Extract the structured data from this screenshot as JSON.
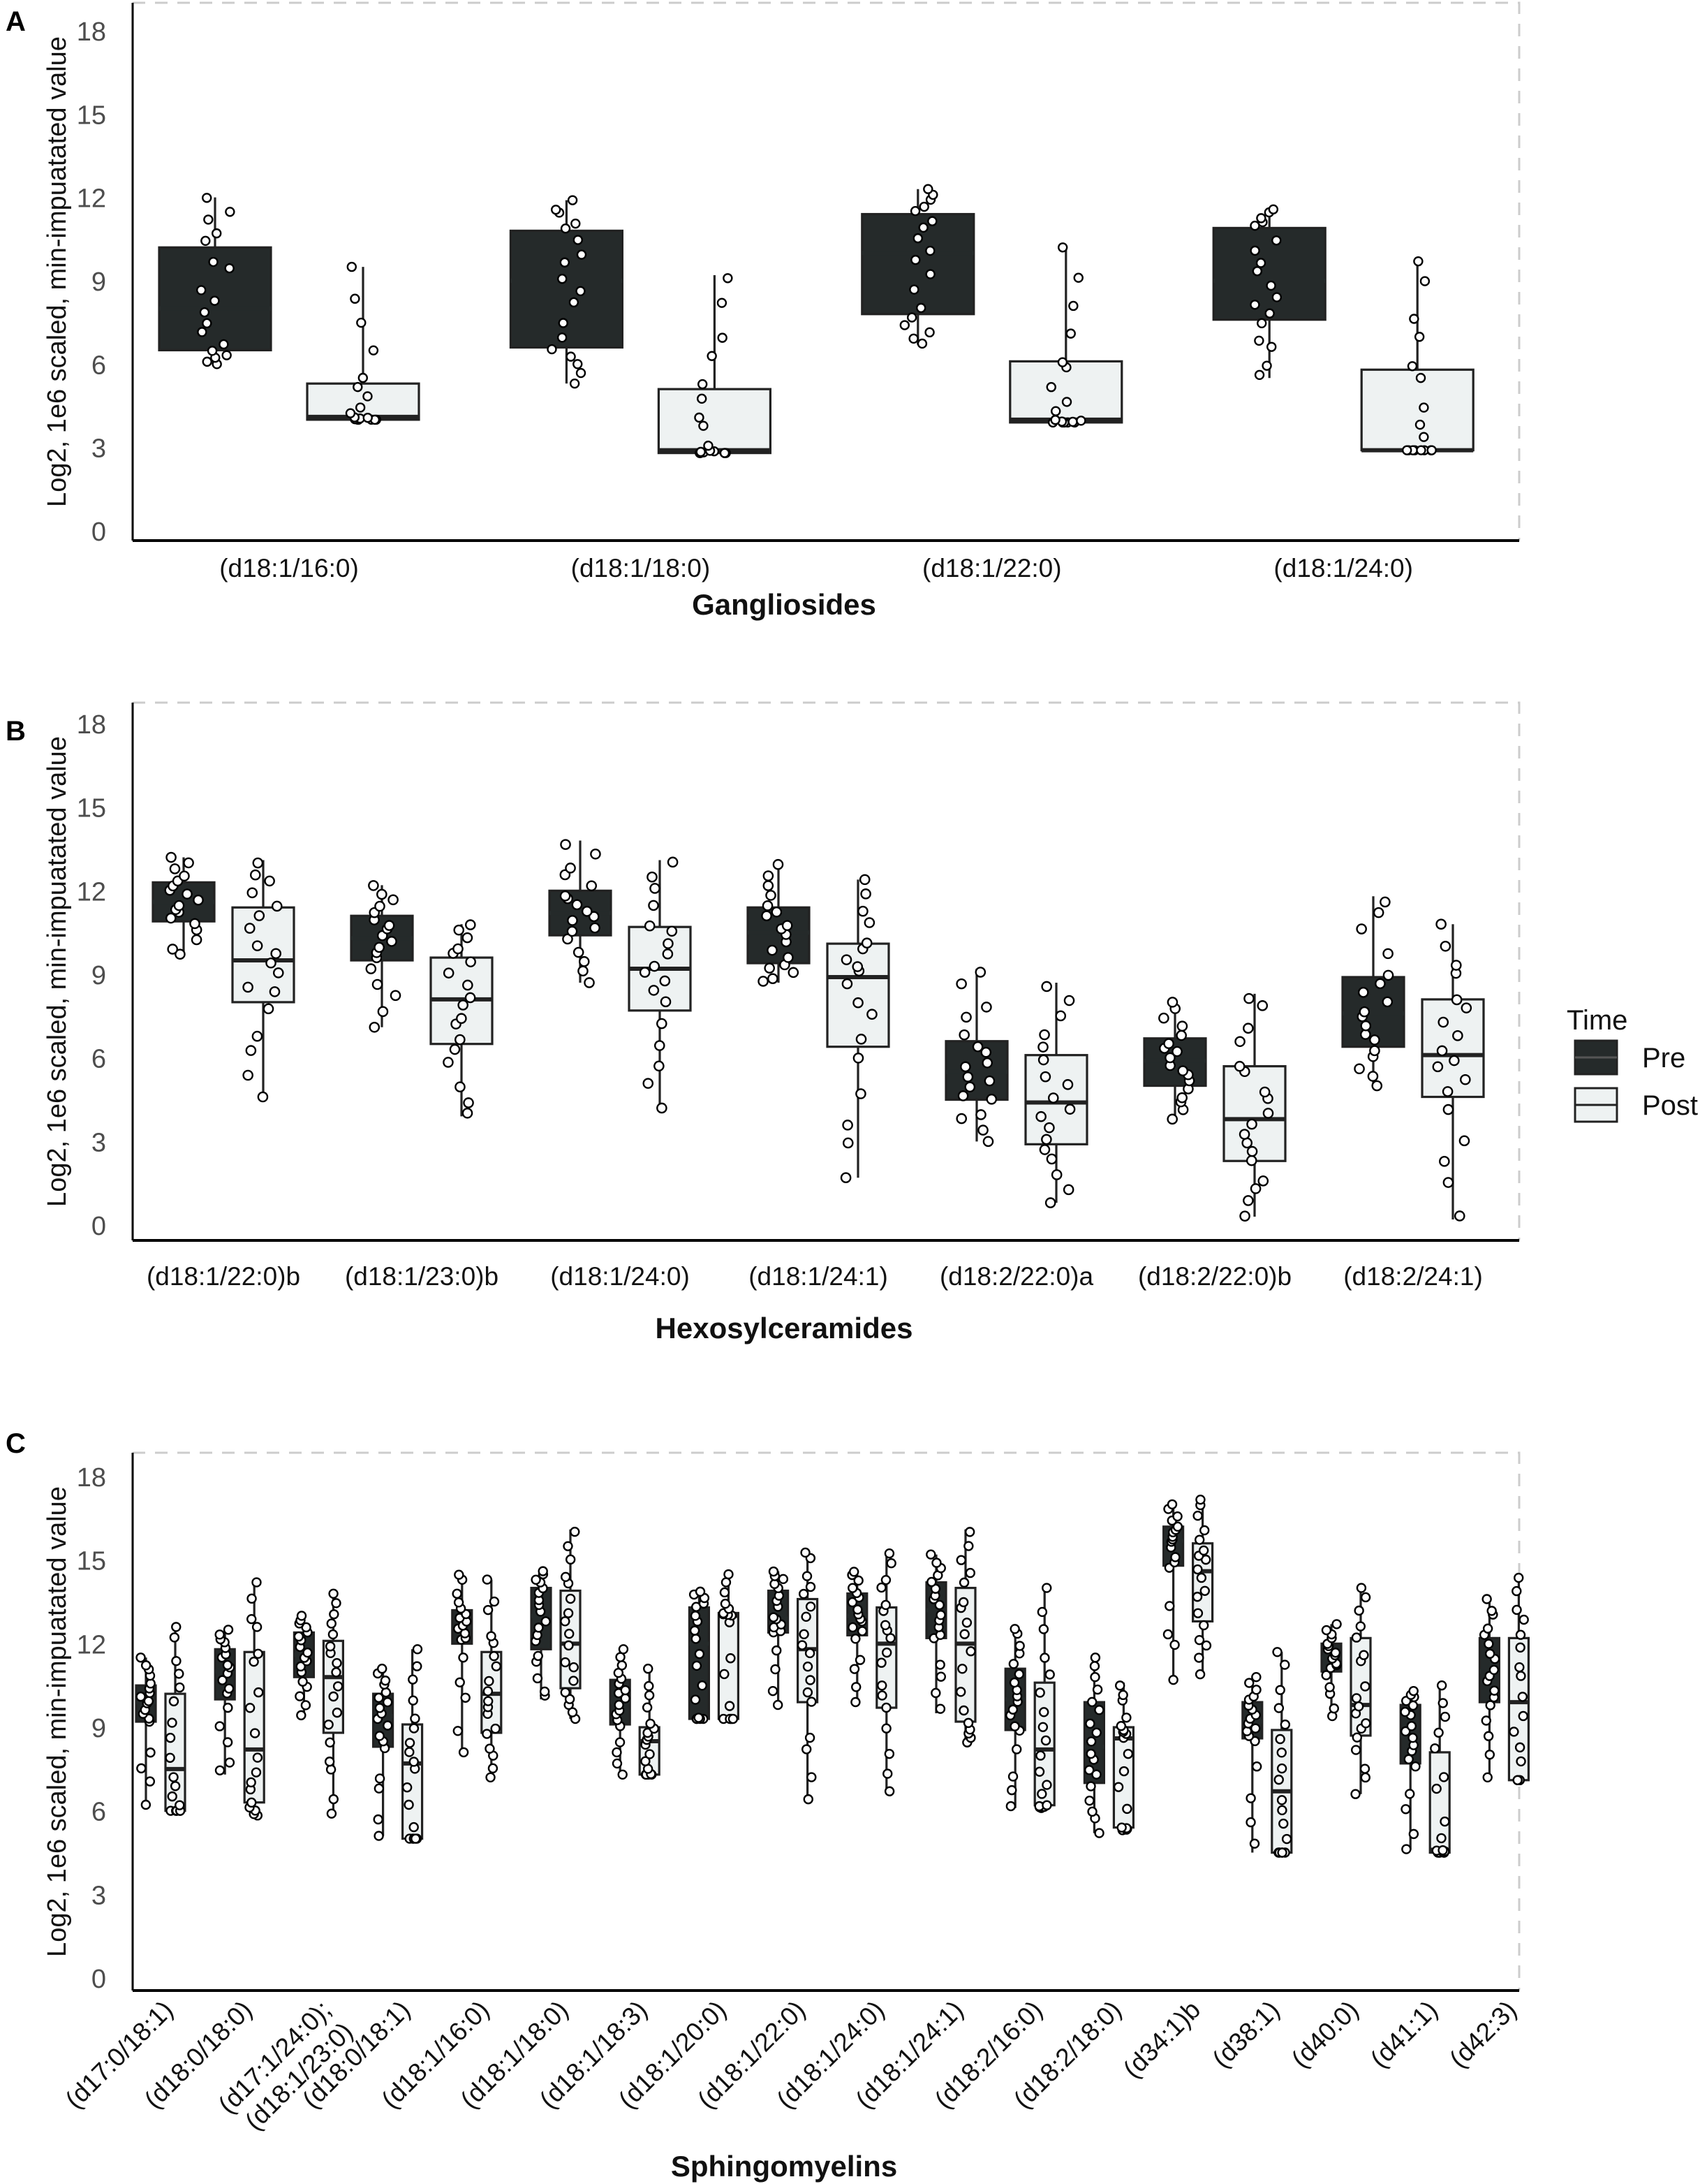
{
  "colors": {
    "pre": "#252a2a",
    "post": "#eef2f2",
    "stroke": "#222222",
    "frame": "#cccccc"
  },
  "legend": {
    "title": "Time",
    "items": [
      "Pre",
      "Post"
    ],
    "placement": "right"
  },
  "chart_data": [
    {
      "type": "box",
      "panel": "A",
      "title": "Gangliosides",
      "xlabel": "Gangliosides",
      "ylabel": "Log2, 1e6 scaled, min-impuatated value",
      "ylim": [
        0,
        18
      ],
      "yticks": [
        "0",
        "3",
        "6",
        "9",
        "12",
        "15",
        "18"
      ],
      "categories": [
        "(d18:1/16:0)",
        "(d18:1/18:0)",
        "(d18:1/22:0)",
        "(d18:1/24:0)"
      ],
      "series": [
        {
          "name": "Pre",
          "boxes": [
            {
              "lo": 6.0,
              "q1": 6.5,
              "med": 8.0,
              "q3": 10.2,
              "hi": 12.0
            },
            {
              "lo": 5.3,
              "q1": 6.6,
              "med": 9.0,
              "q3": 10.8,
              "hi": 11.9
            },
            {
              "lo": 6.7,
              "q1": 7.8,
              "med": 10.0,
              "q3": 11.4,
              "hi": 12.3
            },
            {
              "lo": 5.5,
              "q1": 7.6,
              "med": 9.0,
              "q3": 10.9,
              "hi": 11.6
            }
          ]
        },
        {
          "name": "Post",
          "boxes": [
            {
              "lo": 4.0,
              "q1": 4.0,
              "med": 4.1,
              "q3": 5.3,
              "hi": 9.5
            },
            {
              "lo": 2.8,
              "q1": 2.8,
              "med": 2.9,
              "q3": 5.1,
              "hi": 9.2
            },
            {
              "lo": 3.9,
              "q1": 3.9,
              "med": 4.0,
              "q3": 6.1,
              "hi": 10.2
            },
            {
              "lo": 2.9,
              "q1": 2.9,
              "med": 2.9,
              "q3": 5.8,
              "hi": 9.7
            }
          ]
        }
      ]
    },
    {
      "type": "box",
      "panel": "B",
      "title": "Hexosylceramides",
      "xlabel": "Hexosylceramides",
      "ylabel": "Log2, 1e6 scaled, min-impuatated value",
      "ylim": [
        0,
        18
      ],
      "yticks": [
        "0",
        "3",
        "6",
        "9",
        "12",
        "15",
        "18"
      ],
      "categories": [
        "(d18:1/22:0)b",
        "(d18:1/23:0)b",
        "(d18:1/24:0)",
        "(d18:1/24:1)",
        "(d18:2/22:0)a",
        "(d18:2/22:0)b",
        "(d18:2/24:1)"
      ],
      "series": [
        {
          "name": "Pre",
          "boxes": [
            {
              "lo": 9.7,
              "q1": 10.9,
              "med": 11.6,
              "q3": 12.3,
              "hi": 13.2
            },
            {
              "lo": 7.1,
              "q1": 9.5,
              "med": 10.3,
              "q3": 11.1,
              "hi": 12.2
            },
            {
              "lo": 8.7,
              "q1": 10.4,
              "med": 11.2,
              "q3": 12.0,
              "hi": 13.8
            },
            {
              "lo": 8.7,
              "q1": 9.4,
              "med": 10.5,
              "q3": 11.4,
              "hi": 13.0
            },
            {
              "lo": 3.0,
              "q1": 4.5,
              "med": 5.5,
              "q3": 6.6,
              "hi": 9.2
            },
            {
              "lo": 3.8,
              "q1": 5.0,
              "med": 5.9,
              "q3": 6.7,
              "hi": 8.0
            },
            {
              "lo": 5.0,
              "q1": 6.4,
              "med": 7.6,
              "q3": 8.9,
              "hi": 11.8
            }
          ]
        },
        {
          "name": "Post",
          "boxes": [
            {
              "lo": 4.6,
              "q1": 8.0,
              "med": 9.5,
              "q3": 11.4,
              "hi": 13.1
            },
            {
              "lo": 3.9,
              "q1": 6.5,
              "med": 8.1,
              "q3": 9.6,
              "hi": 10.8
            },
            {
              "lo": 4.2,
              "q1": 7.7,
              "med": 9.2,
              "q3": 10.7,
              "hi": 13.1
            },
            {
              "lo": 1.7,
              "q1": 6.4,
              "med": 8.9,
              "q3": 10.1,
              "hi": 12.4
            },
            {
              "lo": 0.8,
              "q1": 2.9,
              "med": 4.4,
              "q3": 6.1,
              "hi": 8.7
            },
            {
              "lo": 0.3,
              "q1": 2.3,
              "med": 3.8,
              "q3": 5.7,
              "hi": 8.3
            },
            {
              "lo": 0.2,
              "q1": 4.6,
              "med": 6.1,
              "q3": 8.1,
              "hi": 10.8
            }
          ]
        }
      ]
    },
    {
      "type": "box",
      "panel": "C",
      "title": "Sphingomyelins",
      "xlabel": "Sphingomyelins",
      "ylabel": "Log2, 1e6 scaled, min-impuatated value",
      "ylim": [
        0,
        18
      ],
      "yticks": [
        "0",
        "3",
        "6",
        "9",
        "12",
        "15",
        "18"
      ],
      "categories": [
        "(d17:0/18:1)",
        "(d18:0/18:0)",
        "(d17:1/24:0);\n(d18:1/23:0)",
        "(d18:0/18:1)",
        "(d18:1/16:0)",
        "(d18:1/18:0)",
        "(d18:1/18:3)",
        "(d18:1/20:0)",
        "(d18:1/22:0)",
        "(d18:1/24:0)",
        "(d18:1/24:1)",
        "(d18:2/16:0)",
        "(d18:2/18:0)",
        "(d34:1)b",
        "(d38:1)",
        "(d40:0)",
        "(d41:1)",
        "(d42:3)"
      ],
      "series": [
        {
          "name": "Pre",
          "boxes": [
            {
              "lo": 6.1,
              "q1": 9.2,
              "med": 9.9,
              "q3": 10.5,
              "hi": 11.5
            },
            {
              "lo": 7.3,
              "q1": 10.0,
              "med": 11.0,
              "q3": 11.8,
              "hi": 12.5
            },
            {
              "lo": 9.4,
              "q1": 10.8,
              "med": 11.6,
              "q3": 12.4,
              "hi": 13.0
            },
            {
              "lo": 5.1,
              "q1": 8.3,
              "med": 9.4,
              "q3": 10.2,
              "hi": 11.1
            },
            {
              "lo": 8.1,
              "q1": 12.0,
              "med": 12.6,
              "q3": 13.2,
              "hi": 14.5
            },
            {
              "lo": 10.0,
              "q1": 11.8,
              "med": 13.0,
              "q3": 14.0,
              "hi": 14.6
            },
            {
              "lo": 7.3,
              "q1": 9.1,
              "med": 9.9,
              "q3": 10.7,
              "hi": 11.8
            },
            {
              "lo": 9.3,
              "q1": 9.3,
              "med": 12.0,
              "q3": 13.3,
              "hi": 13.9
            },
            {
              "lo": 9.8,
              "q1": 12.4,
              "med": 12.9,
              "q3": 13.9,
              "hi": 14.6
            },
            {
              "lo": 9.8,
              "q1": 12.3,
              "med": 13.0,
              "q3": 13.8,
              "hi": 14.6
            },
            {
              "lo": 9.5,
              "q1": 12.2,
              "med": 13.2,
              "q3": 14.2,
              "hi": 15.2
            },
            {
              "lo": 6.1,
              "q1": 8.9,
              "med": 10.0,
              "q3": 11.1,
              "hi": 12.6
            },
            {
              "lo": 5.2,
              "q1": 7.0,
              "med": 8.3,
              "q3": 9.9,
              "hi": 11.6
            },
            {
              "lo": 10.7,
              "q1": 14.8,
              "med": 15.7,
              "q3": 16.2,
              "hi": 17.0
            },
            {
              "lo": 4.5,
              "q1": 8.6,
              "med": 9.2,
              "q3": 9.9,
              "hi": 10.8
            },
            {
              "lo": 9.4,
              "q1": 11.0,
              "med": 11.5,
              "q3": 12.0,
              "hi": 12.7
            },
            {
              "lo": 4.6,
              "q1": 7.7,
              "med": 8.7,
              "q3": 9.8,
              "hi": 10.3
            },
            {
              "lo": 7.2,
              "q1": 9.9,
              "med": 11.0,
              "q3": 12.2,
              "hi": 13.6
            }
          ]
        },
        {
          "name": "Post",
          "boxes": [
            {
              "lo": 6.0,
              "q1": 6.0,
              "med": 7.5,
              "q3": 10.2,
              "hi": 12.6
            },
            {
              "lo": 5.8,
              "q1": 6.3,
              "med": 8.2,
              "q3": 11.7,
              "hi": 14.2
            },
            {
              "lo": 5.9,
              "q1": 8.8,
              "med": 10.8,
              "q3": 12.1,
              "hi": 13.8
            },
            {
              "lo": 5.0,
              "q1": 5.0,
              "med": 7.7,
              "q3": 9.1,
              "hi": 11.8
            },
            {
              "lo": 7.2,
              "q1": 8.8,
              "med": 10.2,
              "q3": 11.7,
              "hi": 14.3
            },
            {
              "lo": 9.3,
              "q1": 10.4,
              "med": 12.0,
              "q3": 13.9,
              "hi": 16.1
            },
            {
              "lo": 7.3,
              "q1": 7.3,
              "med": 8.5,
              "q3": 9.0,
              "hi": 11.1
            },
            {
              "lo": 9.3,
              "q1": 9.3,
              "med": 13.0,
              "q3": 13.1,
              "hi": 14.5
            },
            {
              "lo": 6.3,
              "q1": 9.9,
              "med": 11.8,
              "q3": 13.6,
              "hi": 15.4
            },
            {
              "lo": 6.7,
              "q1": 9.7,
              "med": 12.0,
              "q3": 13.3,
              "hi": 15.3
            },
            {
              "lo": 8.4,
              "q1": 9.2,
              "med": 12.0,
              "q3": 14.0,
              "hi": 16.1
            },
            {
              "lo": 6.1,
              "q1": 6.2,
              "med": 8.2,
              "q3": 10.6,
              "hi": 14.0
            },
            {
              "lo": 5.3,
              "q1": 5.4,
              "med": 8.6,
              "q3": 9.0,
              "hi": 10.6
            },
            {
              "lo": 10.9,
              "q1": 12.8,
              "med": 14.6,
              "q3": 15.6,
              "hi": 17.3
            },
            {
              "lo": 4.5,
              "q1": 4.5,
              "med": 6.7,
              "q3": 8.9,
              "hi": 11.7
            },
            {
              "lo": 6.6,
              "q1": 8.7,
              "med": 9.8,
              "q3": 12.2,
              "hi": 14.0
            },
            {
              "lo": 4.5,
              "q1": 4.5,
              "med": 4.6,
              "q3": 8.1,
              "hi": 10.5
            },
            {
              "lo": 7.1,
              "q1": 7.1,
              "med": 9.9,
              "q3": 12.2,
              "hi": 14.4
            }
          ]
        }
      ]
    }
  ]
}
